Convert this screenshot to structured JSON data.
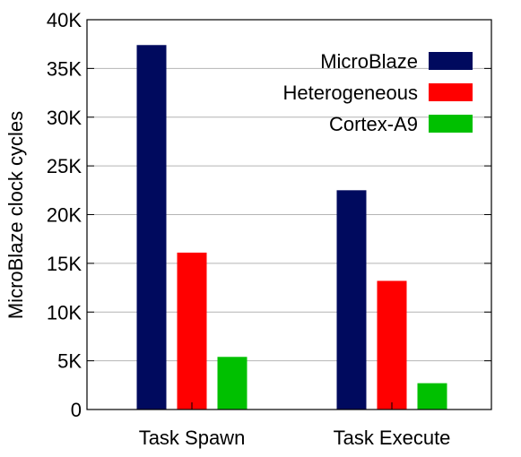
{
  "chart_data": {
    "type": "bar",
    "categories": [
      "Task Spawn",
      "Task Execute"
    ],
    "series": [
      {
        "name": "MicroBlaze",
        "color": "#000a5e",
        "values": [
          37400,
          22500
        ]
      },
      {
        "name": "Heterogeneous",
        "color": "#ff0000",
        "values": [
          16100,
          13200
        ]
      },
      {
        "name": "Cortex-A9",
        "color": "#00c000",
        "values": [
          5400,
          2700
        ]
      }
    ],
    "ylim": [
      0,
      40000
    ],
    "yticks": [
      0,
      5000,
      10000,
      15000,
      20000,
      25000,
      30000,
      35000,
      40000
    ],
    "ytick_labels": [
      "0",
      "5K",
      "10K",
      "15K",
      "20K",
      "25K",
      "30K",
      "35K",
      "40K"
    ],
    "ylabel": "MicroBlaze clock cycles",
    "xlabel": "",
    "title": "",
    "grid": "horizontal",
    "legend_position": "top-right"
  }
}
